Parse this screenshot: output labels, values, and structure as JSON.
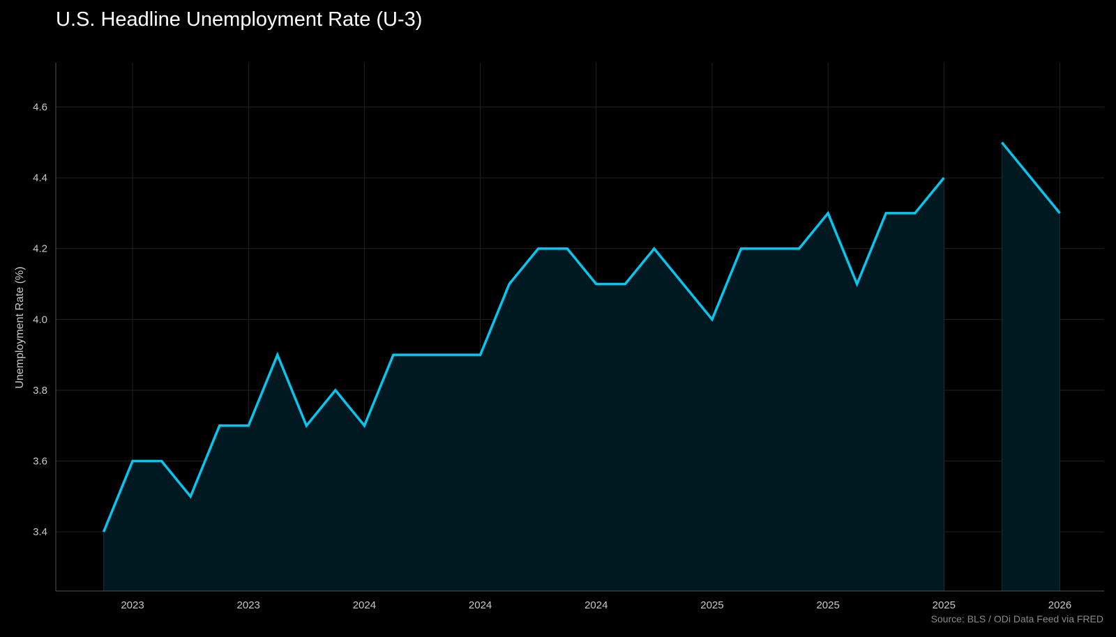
{
  "chart_data": {
    "type": "area",
    "title": "U.S. Headline Unemployment Rate (U-3)",
    "xlabel": "",
    "ylabel": "Unemployment Rate (%)",
    "source": "Source: BLS / ODi Data Feed via FRED",
    "x_tick_labels": [
      "2023",
      "2023",
      "2024",
      "2024",
      "2024",
      "2025",
      "2025",
      "2025",
      "2026"
    ],
    "y_ticks": [
      3.4,
      3.6,
      3.8,
      4.0,
      4.2,
      4.4,
      4.6
    ],
    "ylim": [
      3.233,
      4.725
    ],
    "grid": true,
    "colors": {
      "line": "#00c8f0",
      "fill": "#001820",
      "grid": "#222222",
      "axis": "#555555"
    },
    "series": [
      {
        "values": [
          3.4,
          3.6,
          3.6,
          3.5,
          3.7,
          3.7,
          3.9,
          3.7,
          3.8,
          3.7,
          3.9,
          3.9,
          3.9,
          3.9,
          4.1,
          4.2,
          4.2,
          4.1,
          4.1,
          4.2,
          4.1,
          4.0,
          4.2,
          4.2,
          4.2,
          4.3,
          4.1,
          4.3,
          4.3,
          4.4,
          null,
          4.5,
          4.4,
          4.3
        ]
      }
    ]
  }
}
